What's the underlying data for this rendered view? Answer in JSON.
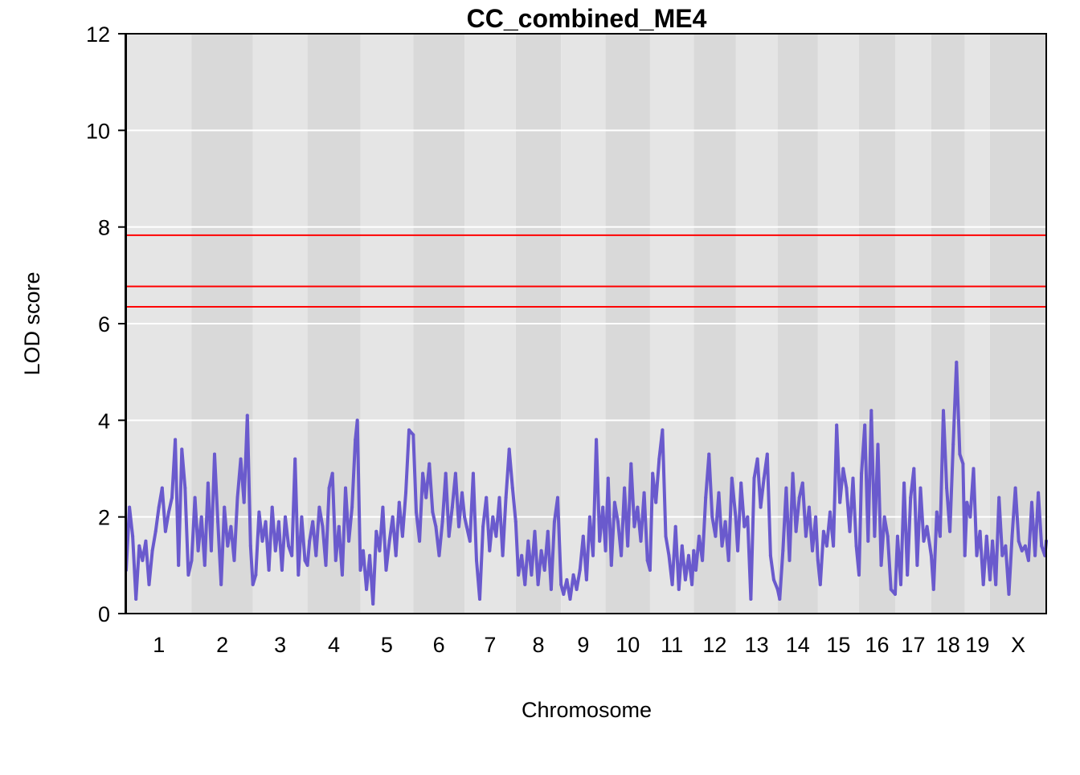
{
  "chart_data": {
    "type": "line",
    "title": "CC_combined_ME4",
    "xlabel": "Chromosome",
    "ylabel": "LOD score",
    "ylim": [
      0,
      12
    ],
    "yticks": [
      0,
      2,
      4,
      6,
      8,
      10,
      12
    ],
    "grid": "horizontal",
    "colors": {
      "lod_line": "#6A5ACD",
      "threshold": "#FF0000",
      "band_light": "#E5E5E5",
      "band_dark": "#D9D9D9",
      "gridline": "#FFFFFF"
    },
    "chromosomes": [
      {
        "label": "1",
        "start": 0.0,
        "end": 1.0
      },
      {
        "label": "2",
        "start": 1.0,
        "end": 1.935
      },
      {
        "label": "3",
        "start": 1.935,
        "end": 2.769
      },
      {
        "label": "4",
        "start": 2.769,
        "end": 3.577
      },
      {
        "label": "5",
        "start": 3.577,
        "end": 4.385
      },
      {
        "label": "6",
        "start": 4.385,
        "end": 5.167
      },
      {
        "label": "7",
        "start": 5.167,
        "end": 5.949
      },
      {
        "label": "8",
        "start": 5.949,
        "end": 6.641
      },
      {
        "label": "9",
        "start": 6.641,
        "end": 7.321
      },
      {
        "label": "10",
        "start": 7.321,
        "end": 8.0
      },
      {
        "label": "11",
        "start": 8.0,
        "end": 8.667
      },
      {
        "label": "12",
        "start": 8.667,
        "end": 9.308
      },
      {
        "label": "13",
        "start": 9.308,
        "end": 9.949
      },
      {
        "label": "14",
        "start": 9.949,
        "end": 10.564
      },
      {
        "label": "15",
        "start": 10.564,
        "end": 11.192
      },
      {
        "label": "16",
        "start": 11.192,
        "end": 11.744
      },
      {
        "label": "17",
        "start": 11.744,
        "end": 12.295
      },
      {
        "label": "18",
        "start": 12.295,
        "end": 12.808
      },
      {
        "label": "19",
        "start": 12.808,
        "end": 13.192
      },
      {
        "label": "X",
        "start": 13.192,
        "end": 14.051
      }
    ],
    "thresholds": [
      7.83,
      6.77,
      6.35
    ],
    "series": [
      {
        "values": [
          [
            0.0,
            0.9
          ],
          [
            0.05,
            2.2
          ],
          [
            0.1,
            1.6
          ],
          [
            0.15,
            0.3
          ],
          [
            0.2,
            1.4
          ],
          [
            0.25,
            1.1
          ],
          [
            0.3,
            1.5
          ],
          [
            0.35,
            0.6
          ],
          [
            0.4,
            1.3
          ],
          [
            0.45,
            1.7
          ],
          [
            0.5,
            2.2
          ],
          [
            0.55,
            2.6
          ],
          [
            0.6,
            1.7
          ],
          [
            0.65,
            2.1
          ],
          [
            0.7,
            2.4
          ],
          [
            0.75,
            3.6
          ],
          [
            0.8,
            1.0
          ],
          [
            0.85,
            3.4
          ],
          [
            0.9,
            2.6
          ],
          [
            0.95,
            0.8
          ],
          [
            1.0,
            1.1
          ],
          [
            1.05,
            2.4
          ],
          [
            1.1,
            1.3
          ],
          [
            1.15,
            2.0
          ],
          [
            1.2,
            1.0
          ],
          [
            1.25,
            2.7
          ],
          [
            1.3,
            1.3
          ],
          [
            1.35,
            3.3
          ],
          [
            1.4,
            1.9
          ],
          [
            1.45,
            0.6
          ],
          [
            1.5,
            2.2
          ],
          [
            1.55,
            1.4
          ],
          [
            1.6,
            1.8
          ],
          [
            1.65,
            1.1
          ],
          [
            1.7,
            2.4
          ],
          [
            1.75,
            3.2
          ],
          [
            1.8,
            2.3
          ],
          [
            1.85,
            4.1
          ],
          [
            1.9,
            1.4
          ],
          [
            1.935,
            0.6
          ],
          [
            1.98,
            0.8
          ],
          [
            2.03,
            2.1
          ],
          [
            2.08,
            1.5
          ],
          [
            2.13,
            1.9
          ],
          [
            2.18,
            0.9
          ],
          [
            2.23,
            2.2
          ],
          [
            2.28,
            1.3
          ],
          [
            2.33,
            1.9
          ],
          [
            2.38,
            0.9
          ],
          [
            2.43,
            2.0
          ],
          [
            2.48,
            1.4
          ],
          [
            2.53,
            1.2
          ],
          [
            2.58,
            3.2
          ],
          [
            2.63,
            0.8
          ],
          [
            2.68,
            2.0
          ],
          [
            2.73,
            1.1
          ],
          [
            2.769,
            1.0
          ],
          [
            2.8,
            1.5
          ],
          [
            2.85,
            1.9
          ],
          [
            2.9,
            1.2
          ],
          [
            2.95,
            2.2
          ],
          [
            3.0,
            1.8
          ],
          [
            3.05,
            1.0
          ],
          [
            3.1,
            2.6
          ],
          [
            3.15,
            2.9
          ],
          [
            3.2,
            1.1
          ],
          [
            3.25,
            1.8
          ],
          [
            3.3,
            0.8
          ],
          [
            3.35,
            2.6
          ],
          [
            3.4,
            1.5
          ],
          [
            3.45,
            2.2
          ],
          [
            3.5,
            3.6
          ],
          [
            3.53,
            4.0
          ],
          [
            3.577,
            0.9
          ],
          [
            3.62,
            1.3
          ],
          [
            3.67,
            0.5
          ],
          [
            3.72,
            1.2
          ],
          [
            3.77,
            0.2
          ],
          [
            3.82,
            1.7
          ],
          [
            3.87,
            1.3
          ],
          [
            3.92,
            2.2
          ],
          [
            3.97,
            0.9
          ],
          [
            4.02,
            1.5
          ],
          [
            4.07,
            2.0
          ],
          [
            4.12,
            1.2
          ],
          [
            4.17,
            2.3
          ],
          [
            4.22,
            1.6
          ],
          [
            4.27,
            2.5
          ],
          [
            4.32,
            3.8
          ],
          [
            4.385,
            3.7
          ],
          [
            4.43,
            2.1
          ],
          [
            4.48,
            1.5
          ],
          [
            4.53,
            2.9
          ],
          [
            4.58,
            2.4
          ],
          [
            4.63,
            3.1
          ],
          [
            4.68,
            2.1
          ],
          [
            4.73,
            1.8
          ],
          [
            4.78,
            1.2
          ],
          [
            4.83,
            1.9
          ],
          [
            4.88,
            2.9
          ],
          [
            4.93,
            1.6
          ],
          [
            4.98,
            2.2
          ],
          [
            5.03,
            2.9
          ],
          [
            5.08,
            1.8
          ],
          [
            5.13,
            2.5
          ],
          [
            5.167,
            2.0
          ],
          [
            5.2,
            1.8
          ],
          [
            5.25,
            1.5
          ],
          [
            5.3,
            2.9
          ],
          [
            5.35,
            1.1
          ],
          [
            5.4,
            0.3
          ],
          [
            5.45,
            1.8
          ],
          [
            5.5,
            2.4
          ],
          [
            5.55,
            1.3
          ],
          [
            5.6,
            2.0
          ],
          [
            5.65,
            1.6
          ],
          [
            5.7,
            2.4
          ],
          [
            5.75,
            1.2
          ],
          [
            5.8,
            2.4
          ],
          [
            5.85,
            3.4
          ],
          [
            5.9,
            2.6
          ],
          [
            5.949,
            1.9
          ],
          [
            5.99,
            0.8
          ],
          [
            6.04,
            1.2
          ],
          [
            6.09,
            0.6
          ],
          [
            6.14,
            1.5
          ],
          [
            6.19,
            0.8
          ],
          [
            6.24,
            1.7
          ],
          [
            6.29,
            0.6
          ],
          [
            6.34,
            1.3
          ],
          [
            6.39,
            0.9
          ],
          [
            6.44,
            1.7
          ],
          [
            6.49,
            0.5
          ],
          [
            6.54,
            1.9
          ],
          [
            6.59,
            2.4
          ],
          [
            6.641,
            0.6
          ],
          [
            6.68,
            0.4
          ],
          [
            6.73,
            0.7
          ],
          [
            6.78,
            0.3
          ],
          [
            6.83,
            0.8
          ],
          [
            6.88,
            0.5
          ],
          [
            6.93,
            0.9
          ],
          [
            6.98,
            1.6
          ],
          [
            7.03,
            0.7
          ],
          [
            7.08,
            2.0
          ],
          [
            7.13,
            1.2
          ],
          [
            7.18,
            3.6
          ],
          [
            7.23,
            1.5
          ],
          [
            7.28,
            2.2
          ],
          [
            7.321,
            1.3
          ],
          [
            7.36,
            2.8
          ],
          [
            7.41,
            1.0
          ],
          [
            7.46,
            2.3
          ],
          [
            7.51,
            1.9
          ],
          [
            7.56,
            1.2
          ],
          [
            7.61,
            2.6
          ],
          [
            7.66,
            1.4
          ],
          [
            7.71,
            3.1
          ],
          [
            7.76,
            1.8
          ],
          [
            7.81,
            2.2
          ],
          [
            7.86,
            1.5
          ],
          [
            7.91,
            2.5
          ],
          [
            7.96,
            1.1
          ],
          [
            8.0,
            0.9
          ],
          [
            8.04,
            2.9
          ],
          [
            8.09,
            2.3
          ],
          [
            8.14,
            3.2
          ],
          [
            8.19,
            3.8
          ],
          [
            8.24,
            1.6
          ],
          [
            8.29,
            1.2
          ],
          [
            8.34,
            0.6
          ],
          [
            8.39,
            1.8
          ],
          [
            8.44,
            0.5
          ],
          [
            8.49,
            1.4
          ],
          [
            8.54,
            0.7
          ],
          [
            8.59,
            1.2
          ],
          [
            8.64,
            0.6
          ],
          [
            8.667,
            1.3
          ],
          [
            8.7,
            0.9
          ],
          [
            8.75,
            1.6
          ],
          [
            8.8,
            1.1
          ],
          [
            8.85,
            2.4
          ],
          [
            8.9,
            3.3
          ],
          [
            8.95,
            2.0
          ],
          [
            9.0,
            1.6
          ],
          [
            9.05,
            2.5
          ],
          [
            9.1,
            1.4
          ],
          [
            9.15,
            1.9
          ],
          [
            9.2,
            1.1
          ],
          [
            9.25,
            2.8
          ],
          [
            9.308,
            2.0
          ],
          [
            9.34,
            1.3
          ],
          [
            9.39,
            2.7
          ],
          [
            9.44,
            1.8
          ],
          [
            9.49,
            2.0
          ],
          [
            9.54,
            0.3
          ],
          [
            9.59,
            2.8
          ],
          [
            9.64,
            3.2
          ],
          [
            9.69,
            2.2
          ],
          [
            9.74,
            2.8
          ],
          [
            9.79,
            3.3
          ],
          [
            9.84,
            1.2
          ],
          [
            9.89,
            0.7
          ],
          [
            9.949,
            0.5
          ],
          [
            9.98,
            0.3
          ],
          [
            10.03,
            1.3
          ],
          [
            10.08,
            2.6
          ],
          [
            10.13,
            1.1
          ],
          [
            10.18,
            2.9
          ],
          [
            10.23,
            1.7
          ],
          [
            10.28,
            2.4
          ],
          [
            10.33,
            2.7
          ],
          [
            10.38,
            1.6
          ],
          [
            10.43,
            2.2
          ],
          [
            10.48,
            1.3
          ],
          [
            10.53,
            2.0
          ],
          [
            10.564,
            1.1
          ],
          [
            10.6,
            0.6
          ],
          [
            10.65,
            1.7
          ],
          [
            10.7,
            1.4
          ],
          [
            10.75,
            2.1
          ],
          [
            10.8,
            1.4
          ],
          [
            10.85,
            3.9
          ],
          [
            10.9,
            2.3
          ],
          [
            10.95,
            3.0
          ],
          [
            11.0,
            2.6
          ],
          [
            11.05,
            1.7
          ],
          [
            11.1,
            2.8
          ],
          [
            11.15,
            1.4
          ],
          [
            11.192,
            0.8
          ],
          [
            11.23,
            2.9
          ],
          [
            11.28,
            3.9
          ],
          [
            11.33,
            1.5
          ],
          [
            11.38,
            4.2
          ],
          [
            11.43,
            1.6
          ],
          [
            11.48,
            3.5
          ],
          [
            11.53,
            1.0
          ],
          [
            11.58,
            2.0
          ],
          [
            11.63,
            1.6
          ],
          [
            11.68,
            0.5
          ],
          [
            11.744,
            0.4
          ],
          [
            11.78,
            1.6
          ],
          [
            11.83,
            0.6
          ],
          [
            11.88,
            2.7
          ],
          [
            11.93,
            0.8
          ],
          [
            11.98,
            2.4
          ],
          [
            12.03,
            3.0
          ],
          [
            12.08,
            1.0
          ],
          [
            12.13,
            2.6
          ],
          [
            12.18,
            1.5
          ],
          [
            12.23,
            1.8
          ],
          [
            12.295,
            1.2
          ],
          [
            12.33,
            0.5
          ],
          [
            12.38,
            2.1
          ],
          [
            12.43,
            1.6
          ],
          [
            12.48,
            4.2
          ],
          [
            12.53,
            2.6
          ],
          [
            12.58,
            1.7
          ],
          [
            12.63,
            3.5
          ],
          [
            12.68,
            5.2
          ],
          [
            12.73,
            3.3
          ],
          [
            12.78,
            3.1
          ],
          [
            12.808,
            1.2
          ],
          [
            12.84,
            2.3
          ],
          [
            12.89,
            2.0
          ],
          [
            12.94,
            3.0
          ],
          [
            12.99,
            1.2
          ],
          [
            13.04,
            1.7
          ],
          [
            13.09,
            0.6
          ],
          [
            13.14,
            1.6
          ],
          [
            13.192,
            0.7
          ],
          [
            13.23,
            1.5
          ],
          [
            13.28,
            0.6
          ],
          [
            13.33,
            2.4
          ],
          [
            13.38,
            1.2
          ],
          [
            13.43,
            1.4
          ],
          [
            13.48,
            0.4
          ],
          [
            13.53,
            1.6
          ],
          [
            13.58,
            2.6
          ],
          [
            13.63,
            1.5
          ],
          [
            13.68,
            1.3
          ],
          [
            13.73,
            1.4
          ],
          [
            13.78,
            1.1
          ],
          [
            13.83,
            2.3
          ],
          [
            13.88,
            1.2
          ],
          [
            13.93,
            2.5
          ],
          [
            13.98,
            1.4
          ],
          [
            14.03,
            1.2
          ],
          [
            14.051,
            1.5
          ]
        ]
      }
    ]
  }
}
